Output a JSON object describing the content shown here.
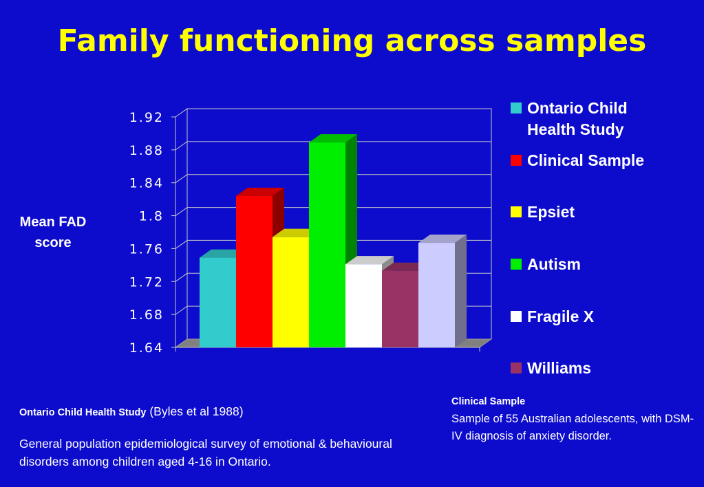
{
  "title": "Family functioning across samples",
  "y_axis_label": "Mean FAD score",
  "chart_data": {
    "type": "bar",
    "title": "",
    "xlabel": "",
    "ylabel": "Mean FAD score",
    "ylim": [
      1.64,
      1.92
    ],
    "yticks": [
      "1.92",
      "1.88",
      "1.84",
      "1.8",
      "1.76",
      "1.72",
      "1.68",
      "1.64"
    ],
    "categories": [
      "Ontario Child Health Study",
      "Clinical Sample",
      "Epsiet",
      "Autism",
      "Fragile X",
      "Williams",
      ""
    ],
    "values": [
      1.749,
      1.824,
      1.774,
      1.889,
      1.741,
      1.733,
      1.767
    ],
    "colors": [
      "#33cccc",
      "#ff0000",
      "#ffff00",
      "#00ee00",
      "#ffffff",
      "#993366",
      "#ccccff"
    ],
    "grid": true,
    "legend_position": "right"
  },
  "legend": [
    {
      "label": "Ontario Child Health Study",
      "color": "#33cccc"
    },
    {
      "label": "Clinical Sample",
      "color": "#ff0000"
    },
    {
      "label": "Epsiet",
      "color": "#ffff00"
    },
    {
      "label": "Autism",
      "color": "#00ee00"
    },
    {
      "label": "Fragile X",
      "color": "#ffffff"
    },
    {
      "label": "Williams",
      "color": "#993366"
    }
  ],
  "notes": {
    "left_heading": "Ontario Child Health Study",
    "left_citation": "(Byles et al 1988)",
    "left_body": "General population epidemiological survey of emotional & behavioural disorders among children aged 4-16 in Ontario.",
    "right_heading": "Clinical Sample",
    "right_body": "Sample of 55 Australian adolescents, with DSM-IV diagnosis of anxiety disorder."
  }
}
